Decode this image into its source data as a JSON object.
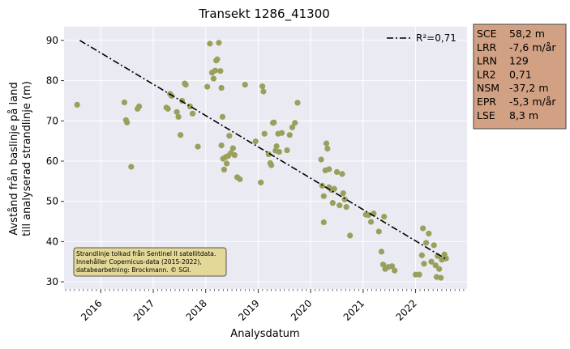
{
  "chart_data": {
    "type": "scatter",
    "title": "Transekt 1286_41300",
    "xlabel": "Analysdatum",
    "ylabel_lines": [
      "Avstånd från baslinje på land",
      "till analyserad strandlinje (m)"
    ],
    "xlim": [
      2015.3,
      2022.98
    ],
    "ylim": [
      28.2,
      93.4
    ],
    "x_ticks": [
      2016,
      2017,
      2018,
      2019,
      2020,
      2021,
      2022
    ],
    "x_tick_labels": [
      "2016",
      "2017",
      "2018",
      "2019",
      "2020",
      "2021",
      "2022"
    ],
    "y_ticks": [
      30,
      40,
      50,
      60,
      70,
      80,
      90
    ],
    "y_tick_labels": [
      "30",
      "40",
      "50",
      "60",
      "70",
      "80",
      "90"
    ],
    "grid": true,
    "points": [
      [
        2015.55,
        74.0
      ],
      [
        2016.45,
        74.6
      ],
      [
        2016.48,
        70.2
      ],
      [
        2016.5,
        69.6
      ],
      [
        2016.58,
        58.6
      ],
      [
        2016.7,
        73.0
      ],
      [
        2016.73,
        73.6
      ],
      [
        2017.25,
        73.3
      ],
      [
        2017.28,
        73.0
      ],
      [
        2017.32,
        76.7
      ],
      [
        2017.35,
        76.2
      ],
      [
        2017.45,
        72.2
      ],
      [
        2017.48,
        71.0
      ],
      [
        2017.52,
        66.5
      ],
      [
        2017.55,
        75.0
      ],
      [
        2017.6,
        79.3
      ],
      [
        2017.62,
        79.0
      ],
      [
        2017.7,
        73.6
      ],
      [
        2017.75,
        71.8
      ],
      [
        2017.85,
        63.6
      ],
      [
        2018.03,
        78.5
      ],
      [
        2018.08,
        89.2
      ],
      [
        2018.12,
        82.0
      ],
      [
        2018.15,
        80.5
      ],
      [
        2018.18,
        82.5
      ],
      [
        2018.2,
        85.0
      ],
      [
        2018.22,
        85.3
      ],
      [
        2018.25,
        89.4
      ],
      [
        2018.28,
        82.4
      ],
      [
        2018.3,
        78.2
      ],
      [
        2018.32,
        71.0
      ],
      [
        2018.3,
        63.9
      ],
      [
        2018.33,
        60.6
      ],
      [
        2018.35,
        57.9
      ],
      [
        2018.38,
        61.0
      ],
      [
        2018.4,
        59.4
      ],
      [
        2018.43,
        61.3
      ],
      [
        2018.45,
        66.3
      ],
      [
        2018.48,
        62.0
      ],
      [
        2018.52,
        63.2
      ],
      [
        2018.55,
        61.5
      ],
      [
        2018.6,
        56.0
      ],
      [
        2018.65,
        55.5
      ],
      [
        2018.75,
        79.0
      ],
      [
        2018.95,
        64.9
      ],
      [
        2019.05,
        54.7
      ],
      [
        2019.08,
        78.6
      ],
      [
        2019.1,
        77.3
      ],
      [
        2019.12,
        66.8
      ],
      [
        2019.2,
        61.7
      ],
      [
        2019.23,
        59.5
      ],
      [
        2019.25,
        59.0
      ],
      [
        2019.28,
        69.5
      ],
      [
        2019.3,
        69.6
      ],
      [
        2019.33,
        62.6
      ],
      [
        2019.35,
        63.7
      ],
      [
        2019.38,
        66.8
      ],
      [
        2019.4,
        62.3
      ],
      [
        2019.45,
        67.0
      ],
      [
        2019.55,
        62.7
      ],
      [
        2019.6,
        66.5
      ],
      [
        2019.65,
        68.4
      ],
      [
        2019.7,
        69.5
      ],
      [
        2019.75,
        74.5
      ],
      [
        2020.2,
        60.4
      ],
      [
        2020.22,
        53.9
      ],
      [
        2020.25,
        51.3
      ],
      [
        2020.25,
        44.8
      ],
      [
        2020.28,
        57.7
      ],
      [
        2020.3,
        64.4
      ],
      [
        2020.32,
        63.1
      ],
      [
        2020.35,
        58.0
      ],
      [
        2020.35,
        53.5
      ],
      [
        2020.4,
        52.8
      ],
      [
        2020.42,
        49.6
      ],
      [
        2020.45,
        53.1
      ],
      [
        2020.5,
        57.3
      ],
      [
        2020.55,
        49.0
      ],
      [
        2020.6,
        56.8
      ],
      [
        2020.62,
        52.0
      ],
      [
        2020.65,
        50.5
      ],
      [
        2020.68,
        48.6
      ],
      [
        2020.75,
        41.5
      ],
      [
        2021.05,
        46.7
      ],
      [
        2021.1,
        46.6
      ],
      [
        2021.15,
        44.9
      ],
      [
        2021.2,
        47.0
      ],
      [
        2021.3,
        42.5
      ],
      [
        2021.35,
        37.5
      ],
      [
        2021.38,
        34.3
      ],
      [
        2021.4,
        46.2
      ],
      [
        2021.42,
        33.2
      ],
      [
        2021.48,
        33.7
      ],
      [
        2021.55,
        33.9
      ],
      [
        2021.6,
        32.8
      ],
      [
        2022.0,
        31.8
      ],
      [
        2022.07,
        31.8
      ],
      [
        2022.12,
        36.6
      ],
      [
        2022.14,
        43.3
      ],
      [
        2022.16,
        34.5
      ],
      [
        2022.2,
        39.7
      ],
      [
        2022.25,
        42.0
      ],
      [
        2022.3,
        35.0
      ],
      [
        2022.35,
        39.1
      ],
      [
        2022.38,
        34.1
      ],
      [
        2022.4,
        31.2
      ],
      [
        2022.42,
        36.4
      ],
      [
        2022.45,
        33.2
      ],
      [
        2022.48,
        31.0
      ],
      [
        2022.5,
        35.5
      ],
      [
        2022.55,
        36.8
      ],
      [
        2022.58,
        35.8
      ]
    ],
    "trend": {
      "x": [
        2015.6,
        2022.6
      ],
      "y": [
        90.0,
        35.5
      ]
    },
    "legend": {
      "label": "R²=0,71",
      "position": "top-right"
    },
    "colors": {
      "points": "#9a9f5c",
      "trend": "#000000",
      "plot_bg": "#eaeaf2",
      "grid": "#ffffff",
      "stats_bg": "#d2a183",
      "note_bg": "#e3d898"
    },
    "stats": [
      {
        "key": "SCE",
        "value": "58,2 m"
      },
      {
        "key": "LRR",
        "value": "-7,6 m/år"
      },
      {
        "key": "LRN",
        "value": "129"
      },
      {
        "key": "LR2",
        "value": "0,71"
      },
      {
        "key": "NSM",
        "value": "-37,2 m"
      },
      {
        "key": "EPR",
        "value": "-5,3 m/år"
      },
      {
        "key": "LSE",
        "value": "8,3 m"
      }
    ],
    "annotation": [
      "Strandlinje tolkad från Sentinel II satellitdata.",
      "Innehåller Copernicus-data (2015-2022),",
      "databearbetning: Brockmann. © SGI."
    ]
  }
}
